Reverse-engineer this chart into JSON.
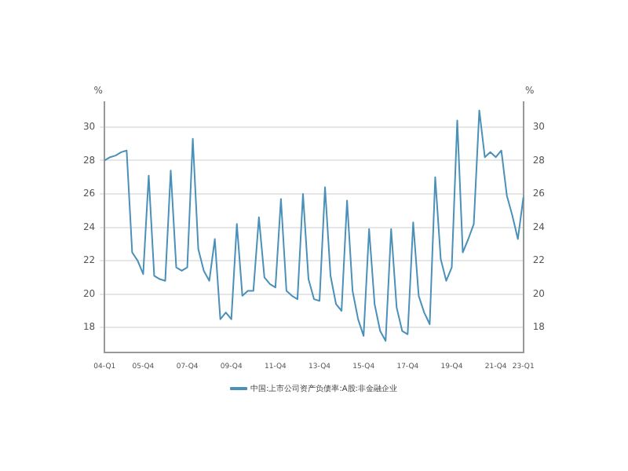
{
  "chart_data": {
    "type": "line",
    "categories": [
      "04-Q1",
      null,
      null,
      null,
      null,
      null,
      null,
      "05-Q4",
      null,
      null,
      null,
      null,
      null,
      null,
      null,
      "07-Q4",
      null,
      null,
      null,
      null,
      null,
      null,
      null,
      "09-Q4",
      null,
      null,
      null,
      null,
      null,
      null,
      null,
      "11-Q4",
      null,
      null,
      null,
      null,
      null,
      null,
      null,
      "13-Q4",
      null,
      null,
      null,
      null,
      null,
      null,
      null,
      "15-Q4",
      null,
      null,
      null,
      null,
      null,
      null,
      null,
      "17-Q4",
      null,
      null,
      null,
      null,
      null,
      null,
      null,
      "19-Q4",
      null,
      null,
      null,
      null,
      null,
      null,
      null,
      "21-Q4",
      null,
      null,
      null,
      null,
      "23-Q1"
    ],
    "series": [
      {
        "name": "中国:上市公司资产负债率:A股:非金融企业",
        "color": "#4a90b8",
        "values": [
          28.0,
          28.2,
          28.3,
          28.5,
          28.6,
          22.5,
          22.0,
          21.2,
          27.1,
          21.1,
          20.9,
          20.8,
          27.4,
          21.6,
          21.4,
          21.6,
          29.3,
          22.7,
          21.4,
          20.8,
          23.3,
          18.5,
          18.9,
          18.5,
          24.2,
          19.9,
          20.2,
          20.2,
          24.6,
          21.0,
          20.6,
          20.4,
          25.7,
          20.2,
          19.9,
          19.7,
          26.0,
          20.9,
          19.7,
          19.6,
          26.4,
          21.1,
          19.4,
          19.0,
          25.6,
          20.2,
          18.5,
          17.5,
          23.9,
          19.4,
          17.8,
          17.2,
          23.9,
          19.2,
          17.8,
          17.6,
          24.3,
          19.9,
          18.9,
          18.2,
          27.0,
          22.1,
          20.8,
          21.6,
          30.4,
          22.5,
          23.3,
          24.2,
          31.0,
          28.2,
          28.5,
          28.2,
          28.6,
          25.9,
          24.7,
          23.3,
          25.8
        ]
      }
    ],
    "ylabel": "%",
    "y2label": "%",
    "ylim": [
      16.5,
      31.5
    ],
    "yticks": [
      18,
      20,
      22,
      24,
      26,
      28,
      30
    ],
    "y2lim": [
      16.5,
      31.5
    ],
    "y2ticks": [
      18,
      20,
      22,
      24,
      26,
      28,
      30
    ],
    "grid": "y",
    "legend": "bottom",
    "marker": "none",
    "line_style": "solid"
  }
}
